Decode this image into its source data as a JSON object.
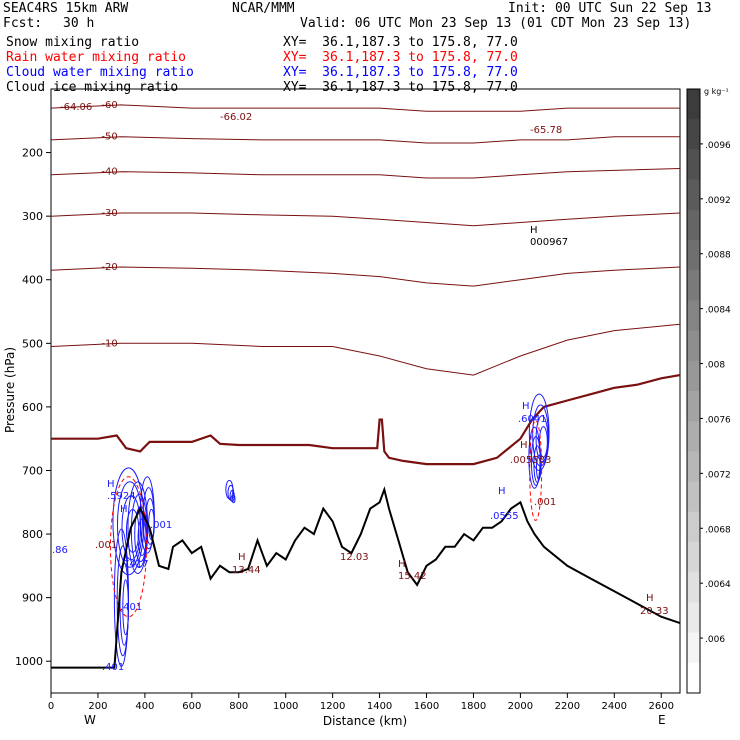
{
  "header": {
    "model": "SEAC4RS 15km ARW",
    "org": "NCAR/MMM",
    "init": "Init: 00 UTC Sun 22 Sep 13",
    "fcst_label": "Fcst:",
    "fcst_value": "30 h",
    "valid": "Valid: 06 UTC Mon 23 Sep 13 (01 CDT Mon 23 Sep 13)"
  },
  "fields": [
    {
      "label": "Snow mixing ratio",
      "xy": "XY=  36.1,187.3 to 175.8, 77.0",
      "color": "#000000"
    },
    {
      "label": "Rain water mixing ratio",
      "xy": "XY=  36.1,187.3 to 175.8, 77.0",
      "color": "#ff0000"
    },
    {
      "label": "Cloud water mixing ratio",
      "xy": "XY=  36.1,187.3 to 175.8, 77.0",
      "color": "#0000ff"
    },
    {
      "label": "Cloud ice mixing ratio",
      "xy": "XY=  36.1,187.3 to 175.8, 77.0",
      "color": "#000000"
    }
  ],
  "colors": {
    "temperature": "#7a1010",
    "freezing_level": "#7a1010",
    "cloud_water": "#1a1aff",
    "rain_water": "#ff0000",
    "terrain": "#000000"
  },
  "chart_data": {
    "type": "cross-section",
    "xlabel": "Distance (km)",
    "ylabel": "Pressure (hPa)",
    "xlim": [
      0,
      2680
    ],
    "ylim": [
      1050,
      100
    ],
    "x_ticks": [
      "0",
      "200",
      "400",
      "600",
      "800",
      "1000",
      "1200",
      "1400",
      "1600",
      "1800",
      "2000",
      "2200",
      "2400",
      "2600"
    ],
    "y_ticks": [
      "200",
      "300",
      "400",
      "500",
      "600",
      "700",
      "800",
      "900",
      "1000"
    ],
    "x_end_labels": {
      "left": "W",
      "right": "E"
    },
    "terrain": [
      [
        0,
        1010
      ],
      [
        270,
        1010
      ],
      [
        300,
        860
      ],
      [
        340,
        790
      ],
      [
        380,
        760
      ],
      [
        420,
        790
      ],
      [
        460,
        850
      ],
      [
        500,
        855
      ],
      [
        520,
        820
      ],
      [
        560,
        810
      ],
      [
        600,
        830
      ],
      [
        640,
        820
      ],
      [
        680,
        870
      ],
      [
        720,
        850
      ],
      [
        760,
        860
      ],
      [
        800,
        860
      ],
      [
        840,
        855
      ],
      [
        880,
        810
      ],
      [
        920,
        850
      ],
      [
        960,
        830
      ],
      [
        1000,
        840
      ],
      [
        1040,
        810
      ],
      [
        1080,
        790
      ],
      [
        1120,
        800
      ],
      [
        1160,
        760
      ],
      [
        1200,
        780
      ],
      [
        1240,
        820
      ],
      [
        1280,
        830
      ],
      [
        1320,
        800
      ],
      [
        1360,
        760
      ],
      [
        1400,
        750
      ],
      [
        1420,
        730
      ],
      [
        1440,
        760
      ],
      [
        1480,
        810
      ],
      [
        1520,
        860
      ],
      [
        1560,
        880
      ],
      [
        1600,
        850
      ],
      [
        1640,
        840
      ],
      [
        1680,
        820
      ],
      [
        1720,
        820
      ],
      [
        1760,
        800
      ],
      [
        1800,
        810
      ],
      [
        1840,
        790
      ],
      [
        1880,
        790
      ],
      [
        1920,
        780
      ],
      [
        1960,
        760
      ],
      [
        2000,
        750
      ],
      [
        2030,
        780
      ],
      [
        2060,
        800
      ],
      [
        2100,
        820
      ],
      [
        2200,
        850
      ],
      [
        2300,
        870
      ],
      [
        2400,
        890
      ],
      [
        2500,
        910
      ],
      [
        2600,
        930
      ],
      [
        2680,
        940
      ]
    ],
    "freezing_level": [
      [
        0,
        650
      ],
      [
        200,
        650
      ],
      [
        280,
        645
      ],
      [
        320,
        665
      ],
      [
        380,
        670
      ],
      [
        420,
        655
      ],
      [
        500,
        655
      ],
      [
        600,
        655
      ],
      [
        680,
        645
      ],
      [
        720,
        658
      ],
      [
        800,
        660
      ],
      [
        900,
        660
      ],
      [
        1000,
        660
      ],
      [
        1100,
        660
      ],
      [
        1200,
        665
      ],
      [
        1300,
        665
      ],
      [
        1390,
        665
      ],
      [
        1400,
        620
      ],
      [
        1410,
        620
      ],
      [
        1420,
        670
      ],
      [
        1440,
        680
      ],
      [
        1500,
        685
      ],
      [
        1600,
        690
      ],
      [
        1700,
        690
      ],
      [
        1800,
        690
      ],
      [
        1900,
        680
      ],
      [
        2000,
        650
      ],
      [
        2050,
        620
      ],
      [
        2100,
        600
      ],
      [
        2200,
        590
      ],
      [
        2300,
        580
      ],
      [
        2400,
        570
      ],
      [
        2500,
        565
      ],
      [
        2600,
        555
      ],
      [
        2680,
        550
      ]
    ],
    "isotherms": [
      {
        "label": "-60",
        "points": [
          [
            0,
            130
          ],
          [
            300,
            125
          ],
          [
            600,
            130
          ],
          [
            900,
            130
          ],
          [
            1200,
            130
          ],
          [
            1400,
            130
          ],
          [
            1600,
            135
          ],
          [
            1800,
            135
          ],
          [
            2000,
            135
          ],
          [
            2200,
            130
          ],
          [
            2400,
            130
          ],
          [
            2680,
            130
          ]
        ]
      },
      {
        "label": "-50",
        "points": [
          [
            0,
            180
          ],
          [
            300,
            175
          ],
          [
            600,
            178
          ],
          [
            900,
            180
          ],
          [
            1200,
            180
          ],
          [
            1400,
            180
          ],
          [
            1600,
            185
          ],
          [
            1800,
            185
          ],
          [
            2000,
            180
          ],
          [
            2200,
            180
          ],
          [
            2400,
            175
          ],
          [
            2680,
            175
          ]
        ]
      },
      {
        "label": "-40",
        "points": [
          [
            0,
            235
          ],
          [
            300,
            230
          ],
          [
            600,
            232
          ],
          [
            900,
            235
          ],
          [
            1200,
            235
          ],
          [
            1400,
            235
          ],
          [
            1600,
            240
          ],
          [
            1800,
            240
          ],
          [
            2000,
            235
          ],
          [
            2200,
            230
          ],
          [
            2400,
            228
          ],
          [
            2680,
            225
          ]
        ]
      },
      {
        "label": "-30",
        "points": [
          [
            0,
            300
          ],
          [
            300,
            295
          ],
          [
            600,
            295
          ],
          [
            900,
            298
          ],
          [
            1200,
            300
          ],
          [
            1400,
            305
          ],
          [
            1600,
            310
          ],
          [
            1800,
            315
          ],
          [
            2000,
            310
          ],
          [
            2200,
            305
          ],
          [
            2400,
            300
          ],
          [
            2680,
            295
          ]
        ]
      },
      {
        "label": "-20",
        "points": [
          [
            0,
            385
          ],
          [
            300,
            380
          ],
          [
            600,
            382
          ],
          [
            900,
            385
          ],
          [
            1200,
            390
          ],
          [
            1400,
            395
          ],
          [
            1600,
            405
          ],
          [
            1800,
            410
          ],
          [
            2000,
            400
          ],
          [
            2200,
            390
          ],
          [
            2400,
            385
          ],
          [
            2680,
            380
          ]
        ]
      },
      {
        "label": "-10",
        "points": [
          [
            0,
            505
          ],
          [
            300,
            500
          ],
          [
            600,
            500
          ],
          [
            900,
            505
          ],
          [
            1200,
            505
          ],
          [
            1400,
            520
          ],
          [
            1600,
            540
          ],
          [
            1800,
            550
          ],
          [
            2000,
            520
          ],
          [
            2200,
            495
          ],
          [
            2400,
            480
          ],
          [
            2680,
            470
          ]
        ]
      }
    ],
    "annotations": [
      "-64.06",
      "-66.02",
      "-65.78",
      "H",
      "000967",
      "H",
      ".6041",
      "H",
      ".005583",
      "H",
      ".5924",
      "H",
      ".7417",
      "H",
      ".0555",
      ".001",
      ".001",
      ".001",
      ".401",
      ".401",
      "H",
      "13.44",
      "12.03",
      "H",
      "15.42",
      "H",
      "20.33",
      ".86"
    ],
    "colorbar": {
      "label": "g kg⁻¹",
      "ticks": [
        ".0096",
        ".0092",
        ".0088",
        ".0084",
        ".008",
        ".0076",
        ".0072",
        ".0068",
        ".0064",
        ".006"
      ]
    }
  }
}
